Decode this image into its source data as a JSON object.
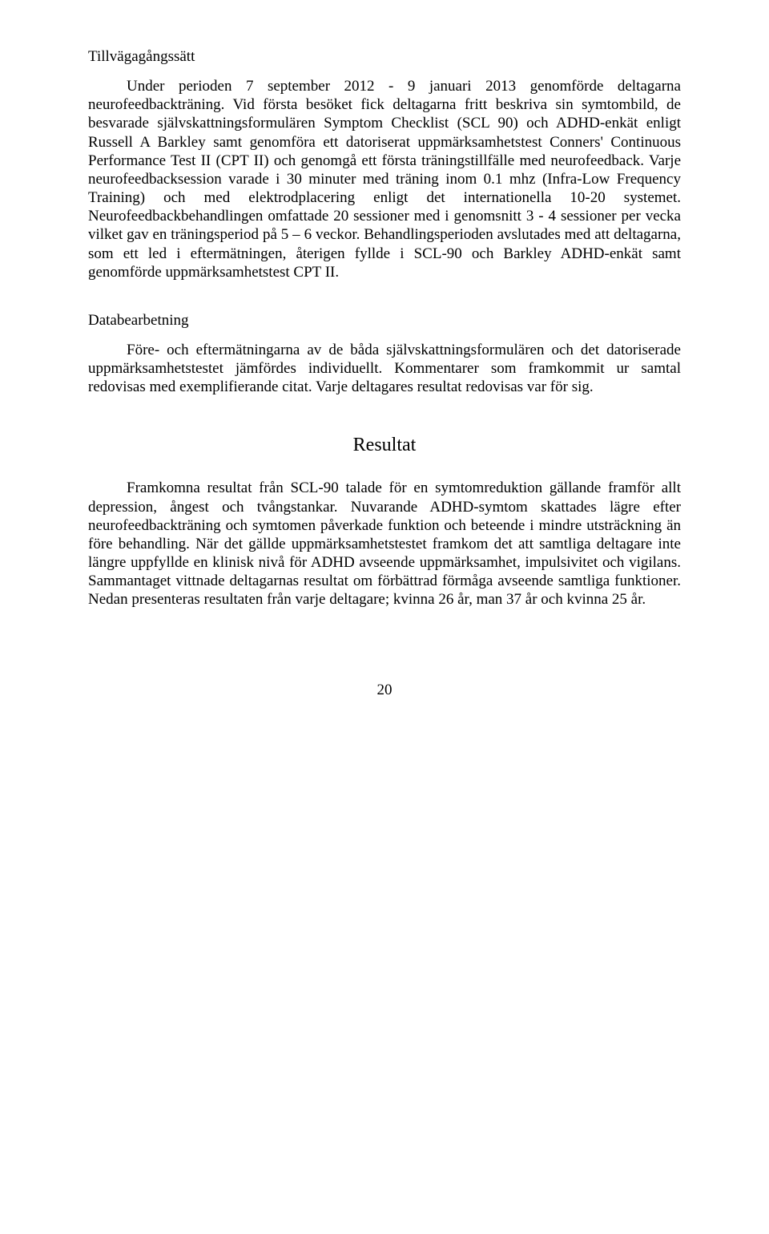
{
  "section1": {
    "heading": "Tillvägagångssätt",
    "para1": "Under perioden 7 september 2012 - 9 januari 2013 genomförde deltagarna neurofeedbackträning. Vid första besöket fick deltagarna fritt beskriva sin symtombild, de besvarade självskattningsformulären Symptom Checklist (SCL 90) och ADHD-enkät enligt Russell A Barkley samt genomföra ett datoriserat uppmärksamhetstest Conners' Continuous Performance Test II (CPT II) och genomgå ett första träningstillfälle med neurofeedback. Varje neurofeedbacksession varade i 30 minuter med träning inom 0.1 mhz (Infra-Low Frequency Training) och med elektrodplacering enligt det internationella 10-20 systemet. Neurofeedbackbehandlingen omfattade 20 sessioner med i genomsnitt 3 - 4 sessioner per vecka vilket gav en träningsperiod på 5 – 6 veckor. Behandlingsperioden avslutades med att deltagarna, som ett led i eftermätningen, återigen fyllde i SCL-90 och Barkley ADHD-enkät samt genomförde uppmärksamhetstest CPT II."
  },
  "section2": {
    "heading": "Databearbetning",
    "para1": "Före- och eftermätningarna av de båda självskattningsformulären och det datoriserade uppmärksamhetstestet jämfördes individuellt. Kommentarer som framkommit ur samtal redovisas med exemplifierande citat. Varje deltagares resultat redovisas var för sig."
  },
  "resultHeading": "Resultat",
  "section3": {
    "para1": "Framkomna resultat från SCL-90 talade för en symtomreduktion gällande framför allt depression, ångest och tvångstankar. Nuvarande ADHD-symtom skattades lägre efter neurofeedbackträning och symtomen påverkade funktion och beteende i mindre utsträckning än före behandling. När det gällde uppmärksamhetstestet framkom det att samtliga deltagare inte längre uppfyllde en klinisk nivå för ADHD avseende uppmärksamhet, impulsivitet och vigilans. Sammantaget vittnade deltagarnas resultat om förbättrad förmåga avseende samtliga funktioner. Nedan presenteras resultaten från varje deltagare; kvinna 26 år, man 37 år och kvinna 25 år."
  },
  "pageNumber": "20"
}
